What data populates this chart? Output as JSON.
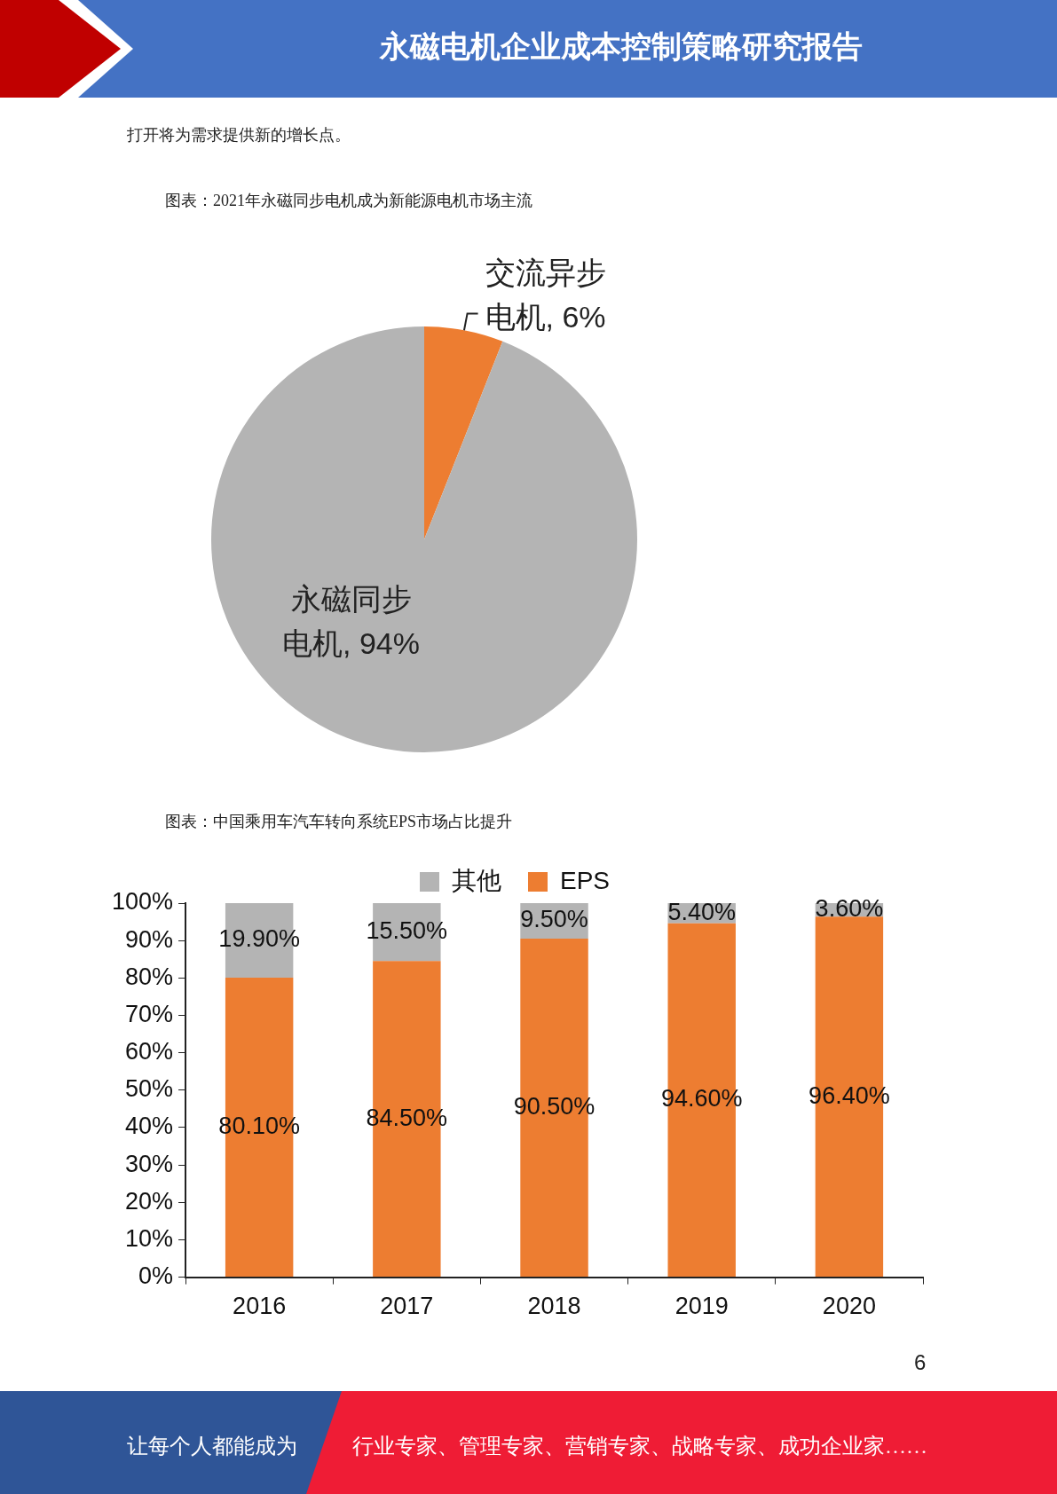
{
  "chart_data": [
    {
      "type": "pie",
      "title": "图表：2021年永磁同步电机成为新能源电机市场主流",
      "categories": [
        "交流异步电机",
        "永磁同步电机"
      ],
      "values": [
        6,
        94
      ],
      "colors": [
        "#ed7d31",
        "#b4b4b4"
      ],
      "value_labels": [
        "6%",
        "94%"
      ],
      "legend": false,
      "annotations": [
        "永磁电机企业成本控制策略研究报告",
        "打开将为需求提供新的增长点。"
      ]
    },
    {
      "type": "bar",
      "title": "图表：中国乘用车汽车转向系统EPS市场占比提升",
      "categories": [
        "2016",
        "2017",
        "2018",
        "2019",
        "2020"
      ],
      "stacked": true,
      "series": [
        {
          "name": "EPS",
          "color": "#ed7d31",
          "values": [
            80.1,
            84.5,
            90.5,
            94.6,
            96.4
          ],
          "value_labels": [
            "80.10%",
            "84.50%",
            "90.50%",
            "94.60%",
            "96.40%"
          ]
        },
        {
          "name": "其他",
          "color": "#b4b4b4",
          "values": [
            19.9,
            15.5,
            9.5,
            5.4,
            3.6
          ],
          "value_labels": [
            "19.90%",
            "15.50%",
            "9.50%",
            "5.40%",
            "3.60%"
          ]
        }
      ],
      "ylim": [
        0,
        100
      ],
      "yticks": [
        {
          "value": 0,
          "label": "0%"
        },
        {
          "value": 10,
          "label": "10%"
        },
        {
          "value": 20,
          "label": "20%"
        },
        {
          "value": 30,
          "label": "30%"
        },
        {
          "value": 40,
          "label": "40%"
        },
        {
          "value": 50,
          "label": "50%"
        },
        {
          "value": 60,
          "label": "60%"
        },
        {
          "value": 70,
          "label": "70%"
        },
        {
          "value": 80,
          "label": "80%"
        },
        {
          "value": 90,
          "label": "90%"
        },
        {
          "value": 100,
          "label": "100%"
        }
      ],
      "grid": false,
      "legend": "top",
      "annotations": [
        "6",
        "让每个人都能成为",
        "行业专家、管理专家、营销专家、战略专家、成功企业家……"
      ]
    }
  ]
}
